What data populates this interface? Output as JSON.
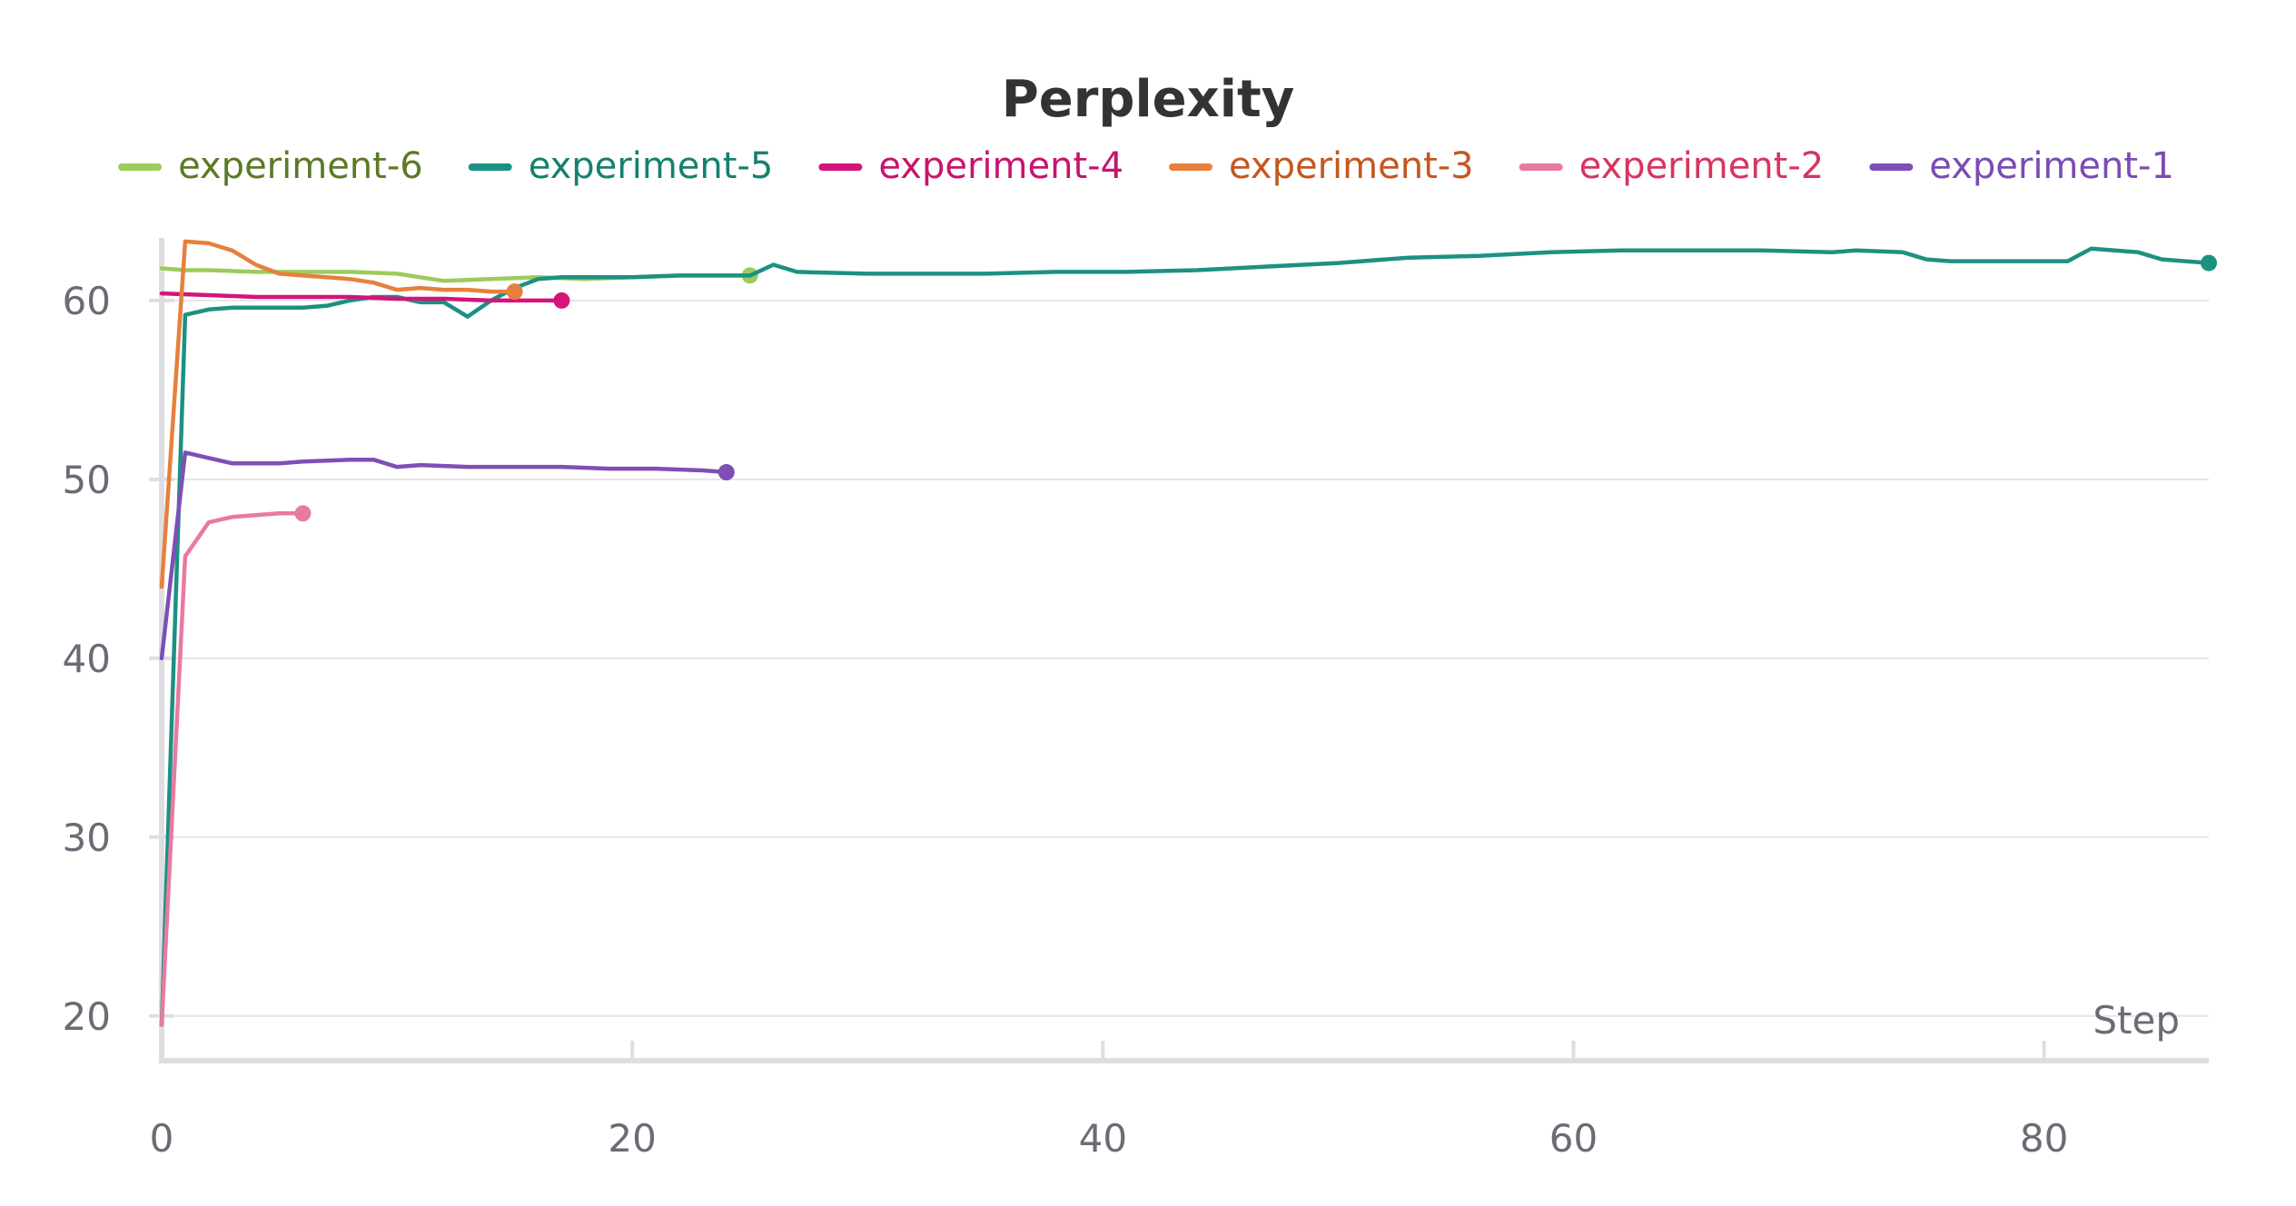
{
  "chart_data": {
    "type": "line",
    "title": "Perplexity",
    "xlabel": "Step",
    "ylabel": "",
    "xlim": [
      0,
      87
    ],
    "ylim": [
      17.5,
      63.5
    ],
    "xticks": [
      0,
      20,
      40,
      60,
      80
    ],
    "yticks": [
      20,
      30,
      40,
      50,
      60
    ],
    "grid": true,
    "legend_position": "top",
    "series": [
      {
        "name": "experiment-6",
        "color": "#9ccb5c",
        "legend_text_color": "#5a7a25",
        "x": [
          0,
          1,
          2,
          4,
          6,
          8,
          10,
          12,
          14,
          16,
          18,
          20,
          22,
          24,
          25
        ],
        "y": [
          61.8,
          61.7,
          61.7,
          61.6,
          61.6,
          61.6,
          61.5,
          61.1,
          61.2,
          61.3,
          61.2,
          61.3,
          61.4,
          61.4,
          61.4
        ]
      },
      {
        "name": "experiment-5",
        "color": "#1c9182",
        "legend_text_color": "#16806f",
        "x": [
          0,
          1,
          2,
          3,
          4,
          5,
          6,
          7,
          8,
          9,
          10,
          11,
          12,
          13,
          14,
          15,
          16,
          17,
          18,
          19,
          20,
          22,
          24,
          25,
          26,
          27,
          30,
          33,
          35,
          38,
          41,
          44,
          47,
          50,
          53,
          56,
          59,
          62,
          65,
          68,
          71,
          72,
          74,
          75,
          76,
          78,
          80,
          81,
          82,
          84,
          85,
          87
        ],
        "y": [
          19.5,
          59.2,
          59.5,
          59.6,
          59.6,
          59.6,
          59.6,
          59.7,
          60.0,
          60.2,
          60.2,
          59.9,
          59.9,
          59.1,
          60.0,
          60.7,
          61.2,
          61.3,
          61.3,
          61.3,
          61.3,
          61.4,
          61.4,
          61.4,
          62.0,
          61.6,
          61.5,
          61.5,
          61.5,
          61.6,
          61.6,
          61.7,
          61.9,
          62.1,
          62.4,
          62.5,
          62.7,
          62.8,
          62.8,
          62.8,
          62.7,
          62.8,
          62.7,
          62.3,
          62.2,
          62.2,
          62.2,
          62.2,
          62.9,
          62.7,
          62.3,
          62.1
        ]
      },
      {
        "name": "experiment-4",
        "color": "#d4147a",
        "legend_text_color": "#c7136f",
        "x": [
          0,
          2,
          4,
          6,
          8,
          10,
          12,
          14,
          16,
          17
        ],
        "y": [
          60.4,
          60.3,
          60.2,
          60.2,
          60.2,
          60.1,
          60.1,
          60.0,
          60.0,
          60.0
        ]
      },
      {
        "name": "experiment-3",
        "color": "#e6803c",
        "legend_text_color": "#c4571f",
        "x": [
          0,
          1,
          2,
          3,
          4,
          5,
          6,
          7,
          8,
          9,
          10,
          11,
          12,
          13,
          14,
          15
        ],
        "y": [
          44.0,
          63.3,
          63.2,
          62.8,
          62.0,
          61.5,
          61.4,
          61.3,
          61.2,
          61.0,
          60.6,
          60.7,
          60.6,
          60.6,
          60.5,
          60.5
        ]
      },
      {
        "name": "experiment-2",
        "color": "#e87aa1",
        "legend_text_color": "#d6355f",
        "x": [
          0,
          1,
          2,
          3,
          4,
          5,
          6
        ],
        "y": [
          19.5,
          45.7,
          47.6,
          47.9,
          48.0,
          48.1,
          48.1
        ]
      },
      {
        "name": "experiment-1",
        "color": "#7e4fb5",
        "legend_text_color": "#7a4cb0",
        "x": [
          0,
          1,
          2,
          3,
          4,
          5,
          6,
          8,
          9,
          10,
          11,
          13,
          15,
          17,
          19,
          21,
          23,
          24
        ],
        "y": [
          40.0,
          51.5,
          51.2,
          50.9,
          50.9,
          50.9,
          51.0,
          51.1,
          51.1,
          50.7,
          50.8,
          50.7,
          50.7,
          50.7,
          50.6,
          50.6,
          50.5,
          50.4
        ]
      }
    ]
  }
}
